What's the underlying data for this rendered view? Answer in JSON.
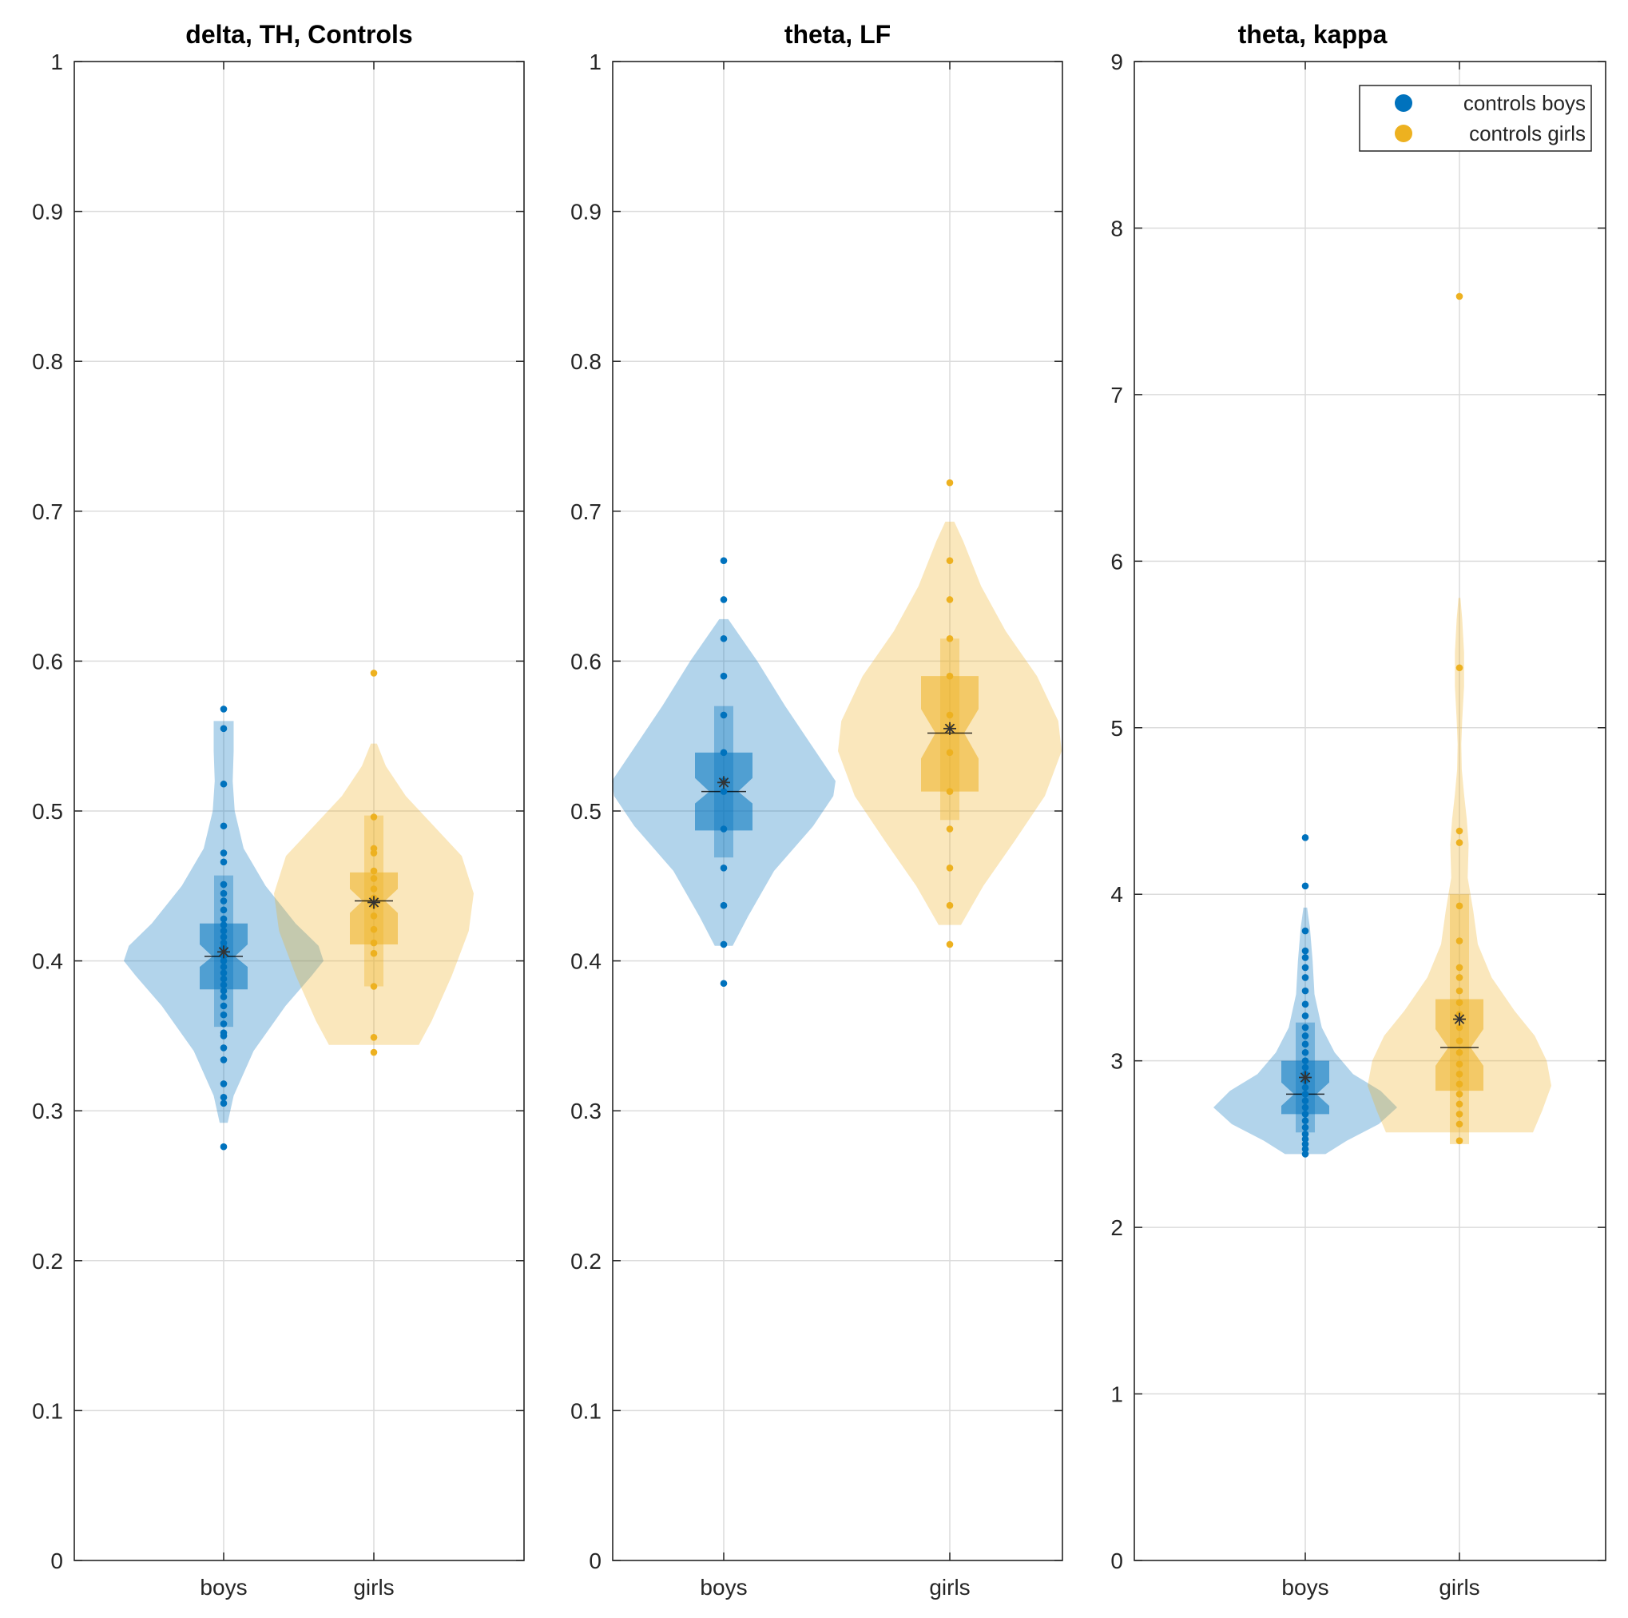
{
  "colors": {
    "boys": "#0072BD",
    "girls": "#EDB120",
    "grid": "#DCDCDC",
    "axis": "#262626"
  },
  "legend": {
    "placement": "top-right",
    "entries": [
      "controls boys",
      "controls girls"
    ]
  },
  "chart_data": [
    {
      "type": "violin",
      "title": "delta, TH, Controls",
      "categories": [
        "boys",
        "girls"
      ],
      "ylim": [
        0,
        1
      ],
      "yticks": [
        "0",
        "0.1",
        "0.2",
        "0.3",
        "0.4",
        "0.5",
        "0.6",
        "0.7",
        "0.8",
        "0.9",
        "1"
      ],
      "series": [
        {
          "name": "controls boys",
          "category": "boys",
          "points": [
            0.276,
            0.305,
            0.309,
            0.318,
            0.334,
            0.342,
            0.35,
            0.352,
            0.358,
            0.364,
            0.37,
            0.376,
            0.38,
            0.384,
            0.388,
            0.392,
            0.396,
            0.4,
            0.403,
            0.406,
            0.409,
            0.412,
            0.416,
            0.42,
            0.424,
            0.428,
            0.434,
            0.44,
            0.445,
            0.451,
            0.466,
            0.472,
            0.49,
            0.518,
            0.555,
            0.568
          ],
          "median": 0.403,
          "mean": 0.406,
          "q1": 0.381,
          "q3": 0.425,
          "notch_low": 0.396,
          "notch_high": 0.411,
          "whisker_low": 0.356,
          "whisker_high": 0.457,
          "violin_min": 0.292,
          "violin_max": 0.56,
          "density": [
            [
              0.292,
              0.04
            ],
            [
              0.31,
              0.1
            ],
            [
              0.34,
              0.3
            ],
            [
              0.37,
              0.62
            ],
            [
              0.39,
              0.88
            ],
            [
              0.4,
              1.0
            ],
            [
              0.41,
              0.95
            ],
            [
              0.425,
              0.72
            ],
            [
              0.45,
              0.42
            ],
            [
              0.475,
              0.2
            ],
            [
              0.5,
              0.11
            ],
            [
              0.52,
              0.09
            ],
            [
              0.54,
              0.1
            ],
            [
              0.56,
              0.1
            ]
          ]
        },
        {
          "name": "controls girls",
          "category": "girls",
          "points": [
            0.339,
            0.349,
            0.383,
            0.405,
            0.412,
            0.421,
            0.43,
            0.437,
            0.442,
            0.448,
            0.455,
            0.46,
            0.472,
            0.475,
            0.496,
            0.592
          ],
          "median": 0.44,
          "mean": 0.439,
          "q1": 0.411,
          "q3": 0.459,
          "notch_low": 0.432,
          "notch_high": 0.448,
          "whisker_low": 0.383,
          "whisker_high": 0.497,
          "violin_min": 0.344,
          "violin_max": 0.545,
          "density": [
            [
              0.344,
              0.45
            ],
            [
              0.36,
              0.58
            ],
            [
              0.39,
              0.78
            ],
            [
              0.42,
              0.95
            ],
            [
              0.445,
              1.0
            ],
            [
              0.47,
              0.88
            ],
            [
              0.49,
              0.6
            ],
            [
              0.51,
              0.32
            ],
            [
              0.53,
              0.12
            ],
            [
              0.545,
              0.03
            ]
          ]
        }
      ]
    },
    {
      "type": "violin",
      "title": "theta, LF",
      "categories": [
        "boys",
        "girls"
      ],
      "ylim": [
        0,
        1
      ],
      "yticks": [
        "0",
        "0.1",
        "0.2",
        "0.3",
        "0.4",
        "0.5",
        "0.6",
        "0.7",
        "0.8",
        "0.9",
        "1"
      ],
      "series": [
        {
          "name": "controls boys",
          "category": "boys",
          "points": [
            0.385,
            0.411,
            0.437,
            0.462,
            0.488,
            0.513,
            0.52,
            0.539,
            0.564,
            0.59,
            0.615,
            0.641,
            0.667
          ],
          "median": 0.513,
          "mean": 0.519,
          "q1": 0.487,
          "q3": 0.539,
          "notch_low": 0.505,
          "notch_high": 0.522,
          "whisker_low": 0.469,
          "whisker_high": 0.57,
          "violin_min": 0.41,
          "violin_max": 0.628,
          "density": [
            [
              0.41,
              0.08
            ],
            [
              0.43,
              0.22
            ],
            [
              0.46,
              0.45
            ],
            [
              0.49,
              0.8
            ],
            [
              0.51,
              0.98
            ],
            [
              0.52,
              1.0
            ],
            [
              0.54,
              0.82
            ],
            [
              0.57,
              0.55
            ],
            [
              0.6,
              0.3
            ],
            [
              0.628,
              0.04
            ]
          ]
        },
        {
          "name": "controls girls",
          "category": "girls",
          "points": [
            0.411,
            0.437,
            0.462,
            0.488,
            0.513,
            0.539,
            0.556,
            0.564,
            0.59,
            0.615,
            0.641,
            0.667,
            0.719
          ],
          "median": 0.552,
          "mean": 0.555,
          "q1": 0.513,
          "q3": 0.59,
          "notch_low": 0.535,
          "notch_high": 0.568,
          "whisker_low": 0.494,
          "whisker_high": 0.615,
          "violin_min": 0.424,
          "violin_max": 0.693,
          "density": [
            [
              0.424,
              0.1
            ],
            [
              0.45,
              0.3
            ],
            [
              0.48,
              0.58
            ],
            [
              0.51,
              0.85
            ],
            [
              0.54,
              1.0
            ],
            [
              0.56,
              0.97
            ],
            [
              0.59,
              0.78
            ],
            [
              0.62,
              0.5
            ],
            [
              0.65,
              0.28
            ],
            [
              0.68,
              0.12
            ],
            [
              0.693,
              0.04
            ]
          ]
        }
      ]
    },
    {
      "type": "violin",
      "title": "theta, kappa",
      "categories": [
        "boys",
        "girls"
      ],
      "ylim": [
        0,
        9
      ],
      "yticks": [
        "0",
        "1",
        "2",
        "3",
        "4",
        "5",
        "6",
        "7",
        "8",
        "9"
      ],
      "series": [
        {
          "name": "controls boys",
          "category": "boys",
          "points": [
            2.44,
            2.47,
            2.5,
            2.53,
            2.56,
            2.6,
            2.64,
            2.68,
            2.72,
            2.76,
            2.8,
            2.84,
            2.88,
            2.92,
            2.96,
            3.0,
            3.05,
            3.1,
            3.15,
            3.2,
            3.27,
            3.34,
            3.42,
            3.5,
            3.56,
            3.62,
            3.66,
            3.78,
            4.05,
            4.34
          ],
          "median": 2.8,
          "mean": 2.9,
          "q1": 2.68,
          "q3": 3.0,
          "notch_low": 2.73,
          "notch_high": 2.87,
          "whisker_low": 2.57,
          "whisker_high": 3.23,
          "violin_min": 2.44,
          "violin_max": 3.92,
          "density": [
            [
              2.44,
              0.22
            ],
            [
              2.52,
              0.45
            ],
            [
              2.62,
              0.8
            ],
            [
              2.72,
              1.0
            ],
            [
              2.82,
              0.82
            ],
            [
              2.92,
              0.52
            ],
            [
              3.05,
              0.32
            ],
            [
              3.2,
              0.18
            ],
            [
              3.4,
              0.1
            ],
            [
              3.6,
              0.08
            ],
            [
              3.8,
              0.05
            ],
            [
              3.92,
              0.02
            ]
          ]
        },
        {
          "name": "controls girls",
          "category": "girls",
          "points": [
            2.52,
            2.62,
            2.68,
            2.74,
            2.8,
            2.86,
            2.92,
            2.98,
            3.05,
            3.12,
            3.2,
            3.28,
            3.35,
            3.42,
            3.5,
            3.56,
            3.72,
            3.93,
            4.31,
            4.38,
            5.36,
            7.59
          ],
          "median": 3.08,
          "mean": 3.25,
          "q1": 2.82,
          "q3": 3.37,
          "notch_low": 2.97,
          "notch_high": 3.19,
          "whisker_low": 2.5,
          "whisker_high": 4.0,
          "violin_min": 2.57,
          "violin_max": 5.78,
          "density": [
            [
              2.57,
              0.8
            ],
            [
              2.7,
              0.9
            ],
            [
              2.85,
              1.0
            ],
            [
              3.0,
              0.95
            ],
            [
              3.15,
              0.82
            ],
            [
              3.3,
              0.6
            ],
            [
              3.5,
              0.35
            ],
            [
              3.7,
              0.2
            ],
            [
              3.9,
              0.15
            ],
            [
              4.1,
              0.09
            ],
            [
              4.3,
              0.1
            ],
            [
              4.45,
              0.08
            ],
            [
              4.6,
              0.05
            ],
            [
              4.75,
              0.025
            ],
            [
              4.9,
              0.02
            ],
            [
              5.05,
              0.03
            ],
            [
              5.25,
              0.05
            ],
            [
              5.45,
              0.05
            ],
            [
              5.65,
              0.03
            ],
            [
              5.78,
              0.01
            ]
          ]
        }
      ]
    }
  ]
}
